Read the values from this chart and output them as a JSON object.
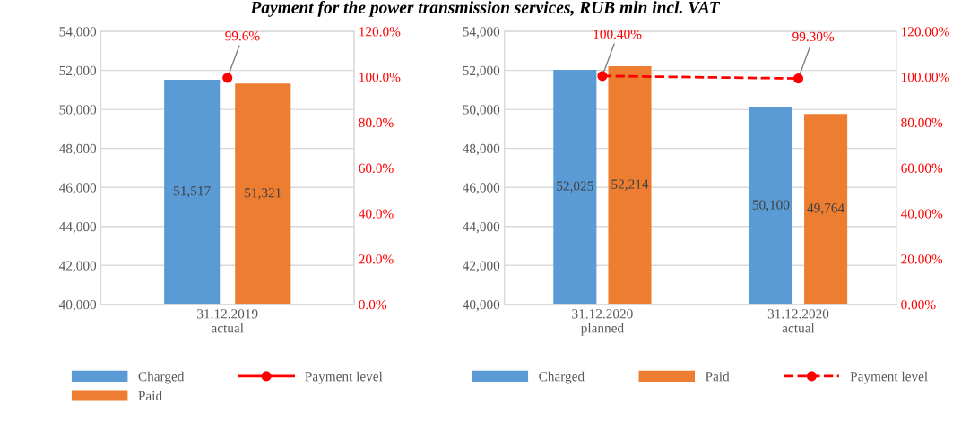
{
  "chart_data": [
    {
      "type": "bar",
      "title": "Payment for the power transmission services, RUB mln incl. VAT",
      "categories": [
        "31.12.2019\nactual"
      ],
      "series": [
        {
          "name": "Charged",
          "color": "#5b9bd5",
          "values": [
            51517
          ],
          "value_labels": [
            "51,517"
          ]
        },
        {
          "name": "Paid",
          "color": "#ed7d31",
          "values": [
            51321
          ],
          "value_labels": [
            "51,321"
          ]
        },
        {
          "name": "Payment level",
          "type": "line",
          "axis": "y2",
          "color": "#ff0000",
          "marker": "circle",
          "line_style": "solid",
          "values": [
            99.6
          ],
          "value_labels": [
            "99.6%"
          ]
        }
      ],
      "ylim": [
        40000,
        54000
      ],
      "yticks": [
        {
          "value": 40000,
          "label": "40,000"
        },
        {
          "value": 42000,
          "label": "42,000"
        },
        {
          "value": 44000,
          "label": "44,000"
        },
        {
          "value": 46000,
          "label": "46,000"
        },
        {
          "value": 48000,
          "label": "48,000"
        },
        {
          "value": 50000,
          "label": "50,000"
        },
        {
          "value": 52000,
          "label": "52,000"
        },
        {
          "value": 54000,
          "label": "54,000"
        }
      ],
      "y2lim": [
        0,
        120
      ],
      "y2ticks": [
        {
          "value": 0,
          "label": "0.0%"
        },
        {
          "value": 20,
          "label": "20.0%"
        },
        {
          "value": 40,
          "label": "40.0%"
        },
        {
          "value": 60,
          "label": "60.0%"
        },
        {
          "value": 80,
          "label": "80.0%"
        },
        {
          "value": 100,
          "label": "100.0%"
        },
        {
          "value": 120,
          "label": "120.0%"
        }
      ],
      "grid": "y",
      "legend": "bottom"
    },
    {
      "type": "bar",
      "categories": [
        "31.12.2020\nplanned",
        "31.12.2020\nactual"
      ],
      "series": [
        {
          "name": "Charged",
          "color": "#5b9bd5",
          "values": [
            52025,
            50100
          ],
          "value_labels": [
            "52,025",
            "50,100"
          ]
        },
        {
          "name": "Paid",
          "color": "#ed7d31",
          "values": [
            52214,
            49764
          ],
          "value_labels": [
            "52,214",
            "49,764"
          ]
        },
        {
          "name": "Payment level",
          "type": "line",
          "axis": "y2",
          "color": "#ff0000",
          "marker": "circle",
          "line_style": "dashed",
          "values": [
            100.4,
            99.3
          ],
          "value_labels": [
            "100.40%",
            "99.30%"
          ]
        }
      ],
      "ylim": [
        40000,
        54000
      ],
      "yticks": [
        {
          "value": 40000,
          "label": "40,000"
        },
        {
          "value": 42000,
          "label": "42,000"
        },
        {
          "value": 44000,
          "label": "44,000"
        },
        {
          "value": 46000,
          "label": "46,000"
        },
        {
          "value": 48000,
          "label": "48,000"
        },
        {
          "value": 50000,
          "label": "50,000"
        },
        {
          "value": 52000,
          "label": "52,000"
        },
        {
          "value": 54000,
          "label": "54,000"
        }
      ],
      "y2lim": [
        0,
        120
      ],
      "y2ticks": [
        {
          "value": 0,
          "label": "0.00%"
        },
        {
          "value": 20,
          "label": "20.00%"
        },
        {
          "value": 40,
          "label": "40.00%"
        },
        {
          "value": 60,
          "label": "60.00%"
        },
        {
          "value": 80,
          "label": "80.00%"
        },
        {
          "value": 100,
          "label": "100.00%"
        },
        {
          "value": 120,
          "label": "120.00%"
        }
      ],
      "grid": "y",
      "legend": "bottom"
    }
  ]
}
